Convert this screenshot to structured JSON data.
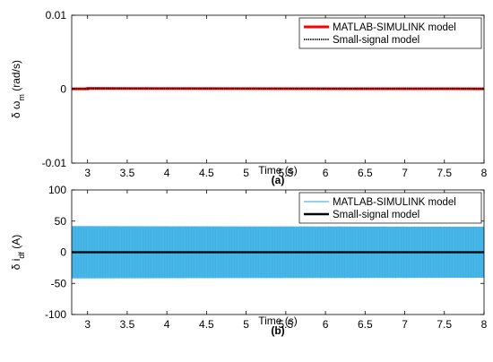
{
  "chart_data": [
    {
      "type": "line",
      "panel_label": "(a)",
      "xlabel": "Time (s)",
      "ylabel": "δ ω",
      "ylabel_subscript": "m",
      "ylabel_unit": " (rad/s)",
      "xlim": [
        2.8,
        8
      ],
      "ylim": [
        -0.01,
        0.01
      ],
      "xticks": [
        3,
        3.5,
        4,
        4.5,
        5,
        5.5,
        6,
        6.5,
        7,
        7.5,
        8
      ],
      "xtick_labels": [
        "3",
        "3.5",
        "4",
        "4.5",
        "5",
        "5.5",
        "6",
        "6.5",
        "7",
        "7.5",
        "8"
      ],
      "yticks": [
        -0.01,
        0,
        0.01
      ],
      "ytick_labels": [
        "-0.01",
        "0",
        "0.01"
      ],
      "grid": false,
      "legend_position": "top-right",
      "series": [
        {
          "name": "MATLAB-SIMULINK model",
          "color": "#ff0000",
          "style": "solid",
          "x": [
            2.8,
            3.0,
            3.0,
            8.0
          ],
          "y": [
            5e-05,
            5e-05,
            0.0001,
            5e-05
          ]
        },
        {
          "name": "Small-signal model",
          "color": "#000000",
          "style": "dotted",
          "x": [
            2.8,
            3.0,
            3.0,
            8.0
          ],
          "y": [
            5e-05,
            5e-05,
            0.0001,
            5e-05
          ]
        }
      ]
    },
    {
      "type": "line",
      "panel_label": "(b)",
      "xlabel": "Time (s)",
      "ylabel": "δ i",
      "ylabel_subscript": "df",
      "ylabel_unit": " (A)",
      "xlim": [
        2.8,
        8
      ],
      "ylim": [
        -100,
        100
      ],
      "xticks": [
        3,
        3.5,
        4,
        4.5,
        5,
        5.5,
        6,
        6.5,
        7,
        7.5,
        8
      ],
      "xtick_labels": [
        "3",
        "3.5",
        "4",
        "4.5",
        "5",
        "5.5",
        "6",
        "6.5",
        "7",
        "7.5",
        "8"
      ],
      "yticks": [
        -100,
        -50,
        0,
        50,
        100
      ],
      "ytick_labels": [
        "-100",
        "-50",
        "0",
        "50",
        "100"
      ],
      "grid": false,
      "legend_position": "top-right",
      "series": [
        {
          "name": "MATLAB-SIMULINK model",
          "color": "#4db8e8",
          "style": "oscillation-band",
          "x": [
            2.8,
            8.0
          ],
          "upper": [
            42,
            41
          ],
          "lower": [
            -42,
            -41
          ]
        },
        {
          "name": "Small-signal model",
          "color": "#000000",
          "style": "solid",
          "x": [
            2.8,
            8.0
          ],
          "y": [
            0,
            0
          ]
        }
      ]
    }
  ]
}
